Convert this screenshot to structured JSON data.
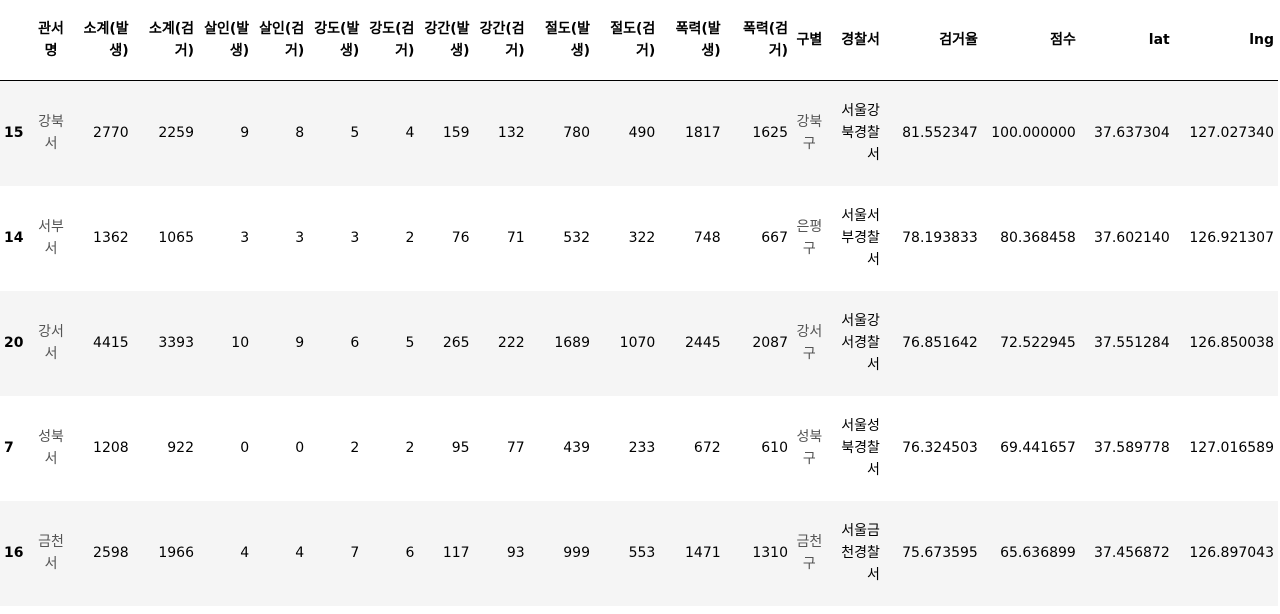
{
  "table": {
    "columns": [
      "",
      "관서명",
      "소계(발생)",
      "소계(검거)",
      "살인(발생)",
      "살인(검거)",
      "강도(발생)",
      "강도(검거)",
      "강간(발생)",
      "강간(검거)",
      "절도(발생)",
      "절도(검거)",
      "폭력(발생)",
      "폭력(검거)",
      "구별",
      "경찰서",
      "검거율",
      "점수",
      "lat",
      "lng"
    ],
    "rows": [
      [
        "15",
        "강북서",
        "2770",
        "2259",
        "9",
        "8",
        "5",
        "4",
        "159",
        "132",
        "780",
        "490",
        "1817",
        "1625",
        "강북구",
        "서울강북경찰서",
        "81.552347",
        "100.000000",
        "37.637304",
        "127.027340"
      ],
      [
        "14",
        "서부서",
        "1362",
        "1065",
        "3",
        "3",
        "3",
        "2",
        "76",
        "71",
        "532",
        "322",
        "748",
        "667",
        "은평구",
        "서울서부경찰서",
        "78.193833",
        "80.368458",
        "37.602140",
        "126.921307"
      ],
      [
        "20",
        "강서서",
        "4415",
        "3393",
        "10",
        "9",
        "6",
        "5",
        "265",
        "222",
        "1689",
        "1070",
        "2445",
        "2087",
        "강서구",
        "서울강서경찰서",
        "76.851642",
        "72.522945",
        "37.551284",
        "126.850038"
      ],
      [
        "7",
        "성북서",
        "1208",
        "922",
        "0",
        "0",
        "2",
        "2",
        "95",
        "77",
        "439",
        "233",
        "672",
        "610",
        "성북구",
        "서울성북경찰서",
        "76.324503",
        "69.441657",
        "37.589778",
        "127.016589"
      ],
      [
        "16",
        "금천서",
        "2598",
        "1966",
        "4",
        "4",
        "7",
        "6",
        "117",
        "93",
        "999",
        "553",
        "1471",
        "1310",
        "금천구",
        "서울금천경찰서",
        "75.673595",
        "65.636899",
        "37.456872",
        "126.897043"
      ]
    ]
  }
}
